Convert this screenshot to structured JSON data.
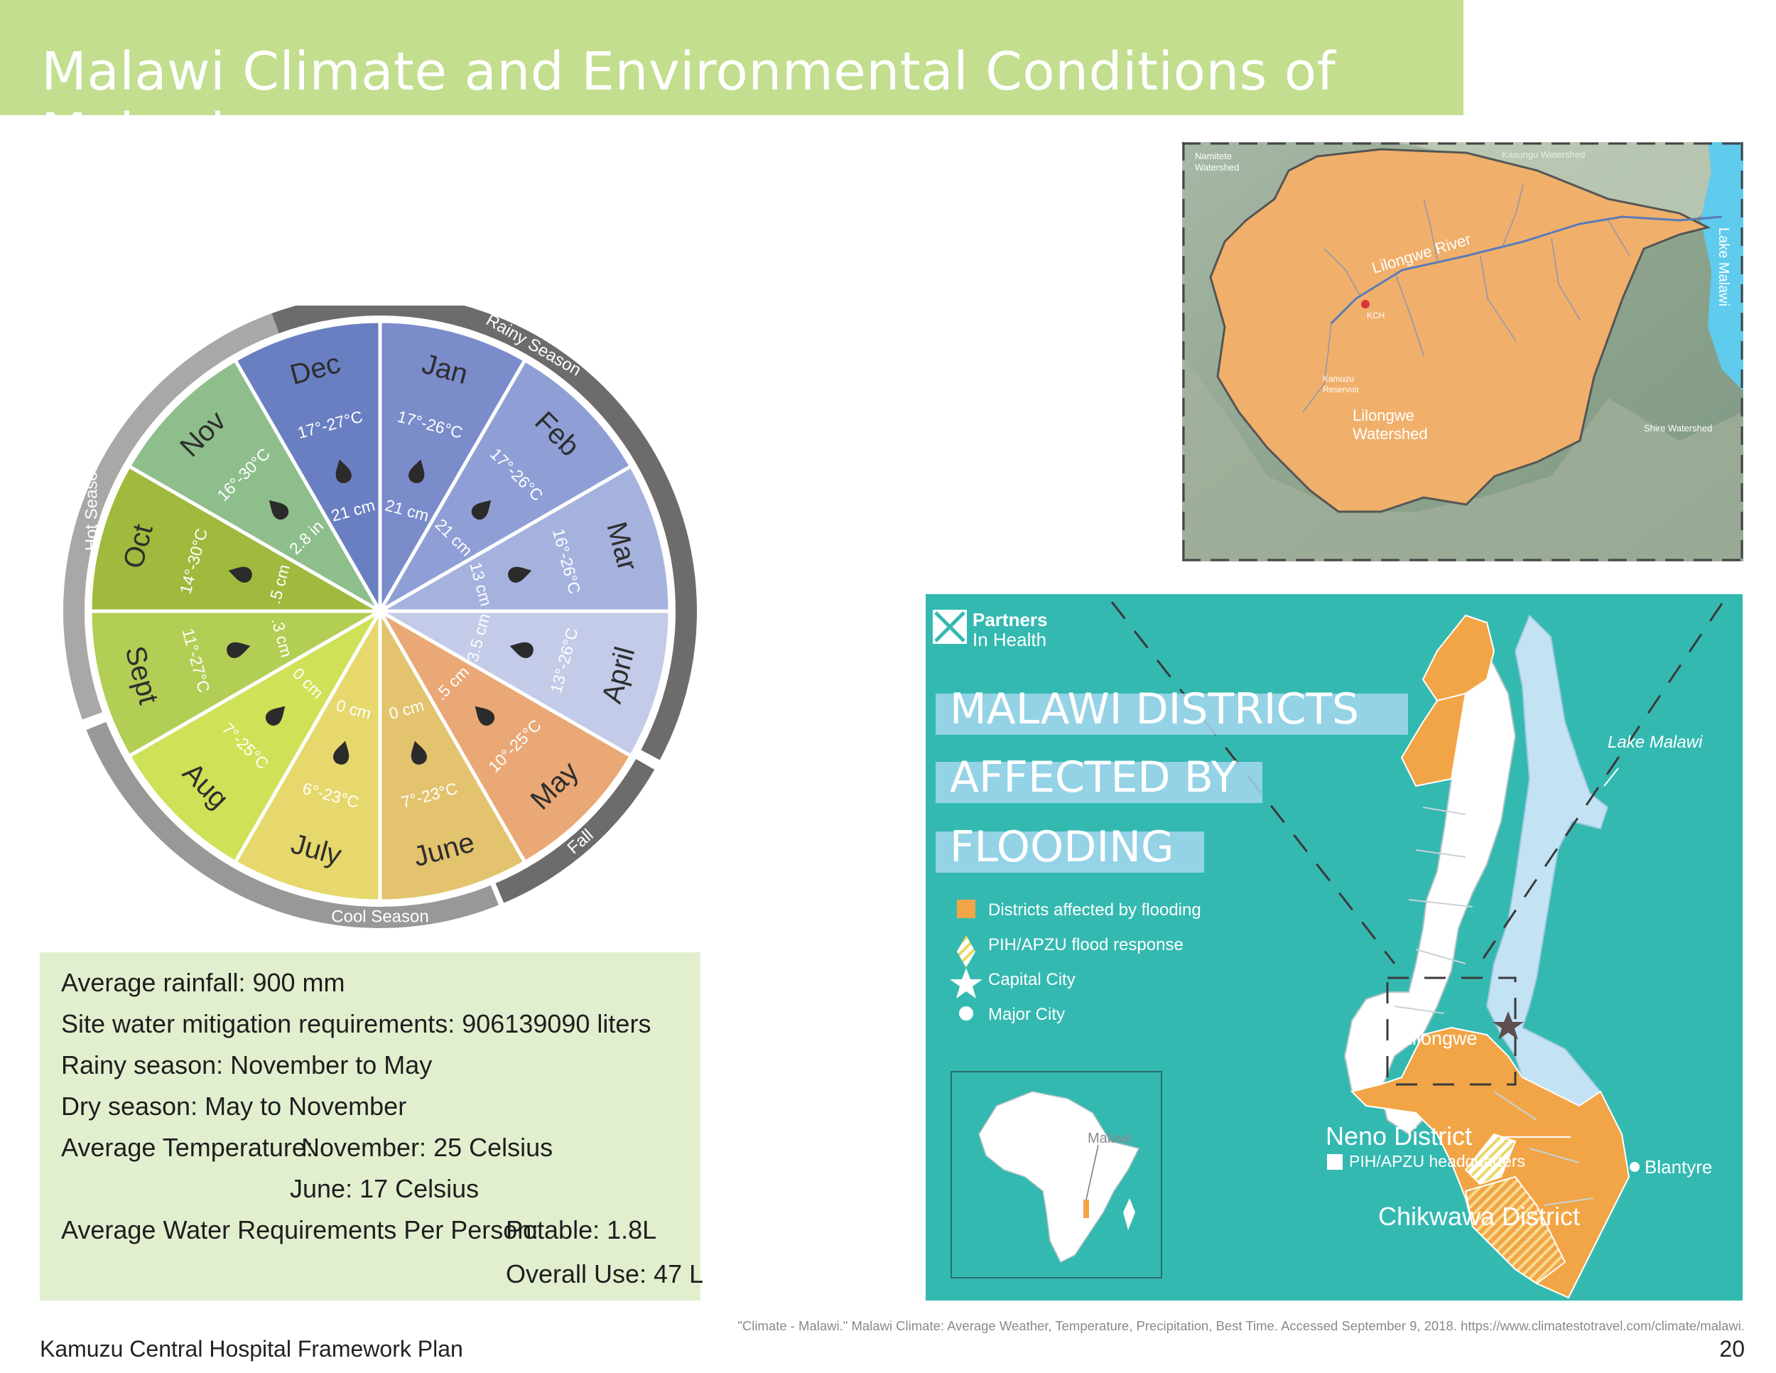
{
  "header": {
    "title": "Malawi Climate and Environmental Conditions of Malawi"
  },
  "wheel": {
    "months": [
      {
        "name": "Jan",
        "temp": "17°-26°C",
        "rain": "21 cm",
        "color": "#7b8ccb"
      },
      {
        "name": "Feb",
        "temp": "17°-26°C",
        "rain": "21 cm",
        "color": "#8f9fd6"
      },
      {
        "name": "Mar",
        "temp": "16°-26°C",
        "rain": "13 cm",
        "color": "#a6b2de"
      },
      {
        "name": "April",
        "temp": "13°-26°C",
        "rain": "3.5 cm",
        "color": "#c3cbe8"
      },
      {
        "name": "May",
        "temp": "10°-25°C",
        "rain": ".5 cm",
        "color": "#e9a875"
      },
      {
        "name": "June",
        "temp": "7°-23°C",
        "rain": "0 cm",
        "color": "#e3c36e"
      },
      {
        "name": "July",
        "temp": "6°-23°C",
        "rain": "0 cm",
        "color": "#e6d86c"
      },
      {
        "name": "Aug",
        "temp": "7°-25°C",
        "rain": "0 cm",
        "color": "#cfe157"
      },
      {
        "name": "Sept",
        "temp": "11°-27°C",
        "rain": ".3 cm",
        "color": "#b2ce55"
      },
      {
        "name": "Oct",
        "temp": "14°-30°C",
        "rain": ".5 cm",
        "color": "#9fba3d"
      },
      {
        "name": "Nov",
        "temp": "16°-30°C",
        "rain": "2.8 in",
        "color": "#8fbe8d"
      },
      {
        "name": "Dec",
        "temp": "17°-27°C",
        "rain": "21 cm",
        "color": "#6a7fc2"
      }
    ],
    "seasons": [
      {
        "label": "Rainy Season"
      },
      {
        "label": "Fall"
      },
      {
        "label": "Cool Season"
      },
      {
        "label": "Hot Season"
      }
    ]
  },
  "info": {
    "rainfall": "Average rainfall: 900 mm",
    "mitigation": "Site water mitigation requirements: 906139090 liters",
    "rainy": "Rainy season: November to May",
    "dry": "Dry season: May to November",
    "temp_label": "Average Temperature:",
    "temp_nov": "November: 25 Celsius",
    "temp_june": "June: 17 Celsius",
    "water_label": "Average Water Requirements Per Person:",
    "water_potable": "Potable: 1.8L",
    "water_overall": "Overall Use: 47 L"
  },
  "watershed_map": {
    "labels": {
      "namitete": [
        "Namitete",
        "Watershed"
      ],
      "kasungu": "Kasungu Watershed",
      "river": "Lilongwe River",
      "kch": "KCH",
      "reservoir": [
        "Kamuzu",
        "Reservoir"
      ],
      "lilongwe_ws": [
        "Lilongwe",
        "Watershed"
      ],
      "shire": "Shire Watershed",
      "lake": "Lake Malawi"
    },
    "colors": {
      "watershed": "#f0b06b",
      "lake": "#5fcbed",
      "terrain": "#8aa08e"
    }
  },
  "flood_map": {
    "logo": [
      "Partners",
      "In Health"
    ],
    "title_lines": [
      "MALAWI DISTRICTS",
      "AFFECTED BY",
      "FLOODING"
    ],
    "legend": [
      "Districts affected by flooding",
      "PIH/APZU flood response",
      "Capital City",
      "Major City"
    ],
    "places": {
      "lake": "Lake Malawi",
      "lilongwe": "Lilongwe",
      "neno": "Neno District",
      "hq": "PIH/APZU headquarters",
      "blantyre": "Blantyre",
      "chikwawa": "Chikwawa District",
      "inset": "Malawi"
    },
    "colors": {
      "bg": "#34b9b1",
      "flood": "#f2a546",
      "lake": "#c3e3f5"
    }
  },
  "footer": {
    "left": "Kamuzu Central Hospital Framework Plan",
    "citation": "\"Climate - Malawi.\" Malawi Climate: Average Weather, Temperature, Precipitation, Best Time. Accessed September 9, 2018. https://www.climatestotravel.com/climate/malawi.",
    "page": "20"
  }
}
